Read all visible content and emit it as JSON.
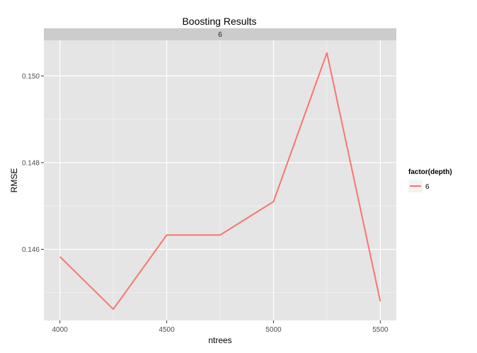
{
  "chart_data": {
    "type": "line",
    "title": "Boosting Results",
    "facet_label": "6",
    "xlabel": "ntrees",
    "ylabel": "RMSE",
    "x": [
      4000,
      4250,
      4500,
      4750,
      5000,
      5250,
      5500
    ],
    "series": [
      {
        "name": "6",
        "values": [
          0.14583,
          0.14462,
          0.14633,
          0.14633,
          0.1471,
          0.15053,
          0.1448
        ]
      }
    ],
    "x_ticks": [
      4000,
      4500,
      5000,
      5500
    ],
    "x_tick_labels": [
      "4000",
      "4500",
      "5000",
      "5500"
    ],
    "y_ticks": [
      0.146,
      0.148,
      0.15
    ],
    "y_tick_labels": [
      "0.146",
      "0.148",
      "0.150"
    ],
    "y_minor_ticks": [
      0.145,
      0.147,
      0.149
    ],
    "xlim": [
      3925,
      5575
    ],
    "ylim": [
      0.14436,
      0.15082
    ],
    "legend": {
      "title": "factor(depth)",
      "entries": [
        "6"
      ],
      "position": "right"
    },
    "grid": true,
    "colors": {
      "panel_background": "#E5E5E5",
      "strip_background": "#CCCCCC",
      "grid_major": "#FFFFFF",
      "grid_minor": "#F2F2F2",
      "line": "#F8766D",
      "tick_text": "#4D4D4D",
      "title_text": "#000000"
    }
  }
}
